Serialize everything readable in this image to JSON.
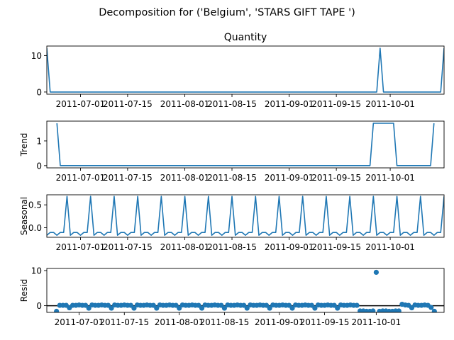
{
  "suptitle": "Decomposition for ('Belgium', 'STARS GIFT TAPE ')",
  "colors": {
    "line": "#1f77b4",
    "axis": "#000000",
    "zero_line": "#000000"
  },
  "x_tick_labels": [
    "2011-07-01",
    "2011-07-15",
    "2011-08-01",
    "2011-08-15",
    "2011-09-01",
    "2011-09-15",
    "2011-10-01"
  ],
  "chart_data": [
    {
      "type": "line",
      "title": "Quantity",
      "ylabel": "",
      "x_start": "2011-06-21",
      "ylim": [
        -0.6,
        12.6
      ],
      "yticks": [
        0,
        10
      ],
      "values": [
        12,
        0,
        0,
        0,
        0,
        0,
        0,
        0,
        0,
        0,
        0,
        0,
        0,
        0,
        0,
        0,
        0,
        0,
        0,
        0,
        0,
        0,
        0,
        0,
        0,
        0,
        0,
        0,
        0,
        0,
        0,
        0,
        0,
        0,
        0,
        0,
        0,
        0,
        0,
        0,
        0,
        0,
        0,
        0,
        0,
        0,
        0,
        0,
        0,
        0,
        0,
        0,
        0,
        0,
        0,
        0,
        0,
        0,
        0,
        0,
        0,
        0,
        0,
        0,
        0,
        0,
        0,
        0,
        0,
        0,
        0,
        0,
        0,
        0,
        0,
        0,
        0,
        0,
        0,
        0,
        0,
        0,
        0,
        0,
        0,
        0,
        0,
        0,
        0,
        0,
        0,
        0,
        0,
        0,
        0,
        0,
        0,
        0,
        0,
        12,
        0,
        0,
        0,
        0,
        0,
        0,
        0,
        0,
        0,
        0,
        0,
        0,
        0,
        0,
        0,
        0,
        0,
        0,
        12
      ]
    },
    {
      "type": "line",
      "title": "",
      "ylabel": "Trend",
      "x_start": "2011-06-21",
      "ylim": [
        -0.09,
        1.8
      ],
      "yticks": [
        0,
        1
      ],
      "values": [
        null,
        null,
        null,
        1.714,
        0,
        0,
        0,
        0,
        0,
        0,
        0,
        0,
        0,
        0,
        0,
        0,
        0,
        0,
        0,
        0,
        0,
        0,
        0,
        0,
        0,
        0,
        0,
        0,
        0,
        0,
        0,
        0,
        0,
        0,
        0,
        0,
        0,
        0,
        0,
        0,
        0,
        0,
        0,
        0,
        0,
        0,
        0,
        0,
        0,
        0,
        0,
        0,
        0,
        0,
        0,
        0,
        0,
        0,
        0,
        0,
        0,
        0,
        0,
        0,
        0,
        0,
        0,
        0,
        0,
        0,
        0,
        0,
        0,
        0,
        0,
        0,
        0,
        0,
        0,
        0,
        0,
        0,
        0,
        0,
        0,
        0,
        0,
        0,
        0,
        0,
        0,
        0,
        0,
        0,
        0,
        0,
        0,
        1.714,
        1.714,
        1.714,
        1.714,
        1.714,
        1.714,
        1.714,
        0,
        0,
        0,
        0,
        0,
        0,
        0,
        0,
        0,
        0,
        0,
        1.714,
        null,
        null,
        null
      ]
    },
    {
      "type": "line",
      "title": "",
      "ylabel": "Seasonal",
      "x_start": "2011-06-21",
      "ylim": [
        -0.21,
        0.72
      ],
      "yticks": [
        0.0,
        0.5
      ],
      "tick_labels": [
        "0.0",
        "0.5"
      ],
      "values": [
        -0.166,
        -0.104,
        -0.104,
        -0.166,
        -0.104,
        -0.104,
        0.686,
        -0.166,
        -0.104,
        -0.104,
        -0.166,
        -0.104,
        -0.104,
        0.686,
        -0.166,
        -0.104,
        -0.104,
        -0.166,
        -0.104,
        -0.104,
        0.686,
        -0.166,
        -0.104,
        -0.104,
        -0.166,
        -0.104,
        -0.104,
        0.686,
        -0.166,
        -0.104,
        -0.104,
        -0.166,
        -0.104,
        -0.104,
        0.686,
        -0.166,
        -0.104,
        -0.104,
        -0.166,
        -0.104,
        -0.104,
        0.686,
        -0.166,
        -0.104,
        -0.104,
        -0.166,
        -0.104,
        -0.104,
        0.686,
        -0.166,
        -0.104,
        -0.104,
        -0.166,
        -0.104,
        -0.104,
        0.686,
        -0.166,
        -0.104,
        -0.104,
        -0.166,
        -0.104,
        -0.104,
        0.686,
        -0.166,
        -0.104,
        -0.104,
        -0.166,
        -0.104,
        -0.104,
        0.686,
        -0.166,
        -0.104,
        -0.104,
        -0.166,
        -0.104,
        -0.104,
        0.686,
        -0.166,
        -0.104,
        -0.104,
        -0.166,
        -0.104,
        -0.104,
        0.686,
        -0.166,
        -0.104,
        -0.104,
        -0.166,
        -0.104,
        -0.104,
        0.686,
        -0.166,
        -0.104,
        -0.104,
        -0.166,
        -0.104,
        -0.104,
        0.686,
        -0.166,
        -0.104,
        -0.104,
        -0.166,
        -0.104,
        -0.104,
        0.686,
        -0.166,
        -0.104,
        -0.104,
        -0.166,
        -0.104,
        -0.104,
        0.686,
        -0.166,
        -0.104,
        -0.104,
        -0.166,
        -0.104,
        -0.104,
        0.686
      ]
    },
    {
      "type": "scatter",
      "title": "",
      "ylabel": "Resid",
      "x_start": "2011-06-21",
      "ylim": [
        -1.9,
        10.6
      ],
      "yticks": [
        0,
        10
      ],
      "zero_line": 0,
      "values": [
        null,
        null,
        null,
        -1.6,
        0.1,
        0.1,
        0.1,
        -0.6,
        0.1,
        0.1,
        0.2,
        0.1,
        0.1,
        -0.7,
        0.2,
        0.1,
        0.1,
        0.2,
        0.1,
        0.1,
        -0.7,
        0.2,
        0.1,
        0.1,
        0.2,
        0.1,
        0.1,
        -0.7,
        0.2,
        0.1,
        0.1,
        0.2,
        0.1,
        0.1,
        -0.7,
        0.2,
        0.1,
        0.1,
        0.2,
        0.1,
        0.1,
        -0.7,
        0.2,
        0.1,
        0.1,
        0.2,
        0.1,
        0.1,
        -0.7,
        0.2,
        0.1,
        0.1,
        0.2,
        0.1,
        0.1,
        -0.7,
        0.2,
        0.1,
        0.1,
        0.2,
        0.1,
        0.1,
        -0.7,
        0.2,
        0.1,
        0.1,
        0.2,
        0.1,
        0.1,
        -0.7,
        0.2,
        0.1,
        0.1,
        0.2,
        0.1,
        0.1,
        -0.7,
        0.2,
        0.1,
        0.1,
        0.2,
        0.1,
        0.1,
        -0.7,
        0.2,
        0.1,
        0.1,
        0.2,
        0.1,
        0.1,
        -0.7,
        0.2,
        0.1,
        0.1,
        0.2,
        0.1,
        0.1,
        -1.5,
        -1.5,
        -1.6,
        -1.6,
        -1.5,
        9.5,
        -1.6,
        -1.5,
        -1.5,
        -1.6,
        -1.6,
        -1.5,
        -1.5,
        0.4,
        0.2,
        0.1,
        -0.6,
        0.2,
        0.1,
        0.1,
        0.2,
        0.1,
        -0.5,
        -1.6,
        null,
        null,
        null
      ]
    }
  ]
}
